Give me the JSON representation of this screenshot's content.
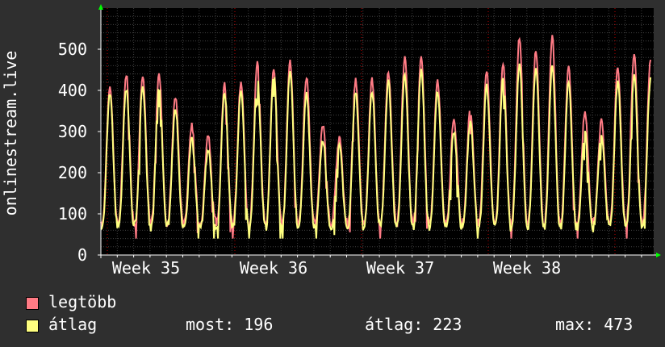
{
  "chart_data": {
    "type": "line",
    "ylabel": "onlinestream.live",
    "ylim": [
      0,
      600
    ],
    "yticks": [
      0,
      100,
      200,
      300,
      400,
      500
    ],
    "xticks": [
      "Week 35",
      "Week 36",
      "Week 37",
      "Week 38"
    ],
    "grid": true,
    "legend_position": "bottom",
    "days": 34,
    "series": [
      {
        "name": "legtöbb",
        "color": "#ff7b85",
        "daily_peaks": [
          410,
          440,
          440,
          440,
          385,
          315,
          290,
          415,
          420,
          465,
          455,
          470,
          435,
          315,
          285,
          425,
          425,
          445,
          485,
          485,
          425,
          330,
          355,
          445,
          465,
          530,
          500,
          530,
          460,
          350,
          325,
          455,
          490,
          470
        ]
      },
      {
        "name": "átlag",
        "color": "#ffff80",
        "daily_peaks": [
          395,
          405,
          415,
          415,
          355,
          280,
          255,
          395,
          400,
          430,
          440,
          445,
          390,
          280,
          270,
          395,
          400,
          420,
          440,
          450,
          400,
          300,
          320,
          410,
          430,
          460,
          455,
          460,
          420,
          300,
          295,
          420,
          440,
          430
        ]
      }
    ]
  },
  "legend": {
    "max_label": "legtöbb",
    "avg_label": "átlag"
  },
  "stats": {
    "now": "most: 196",
    "avg": "átlag: 223",
    "max": "max: 473"
  },
  "colors": {
    "background": "#2f2f2f",
    "plot_background": "#000000",
    "grid": "#404040",
    "week_marker": "#c00000",
    "axis": "#ffffff",
    "arrow": "#00ff00"
  }
}
